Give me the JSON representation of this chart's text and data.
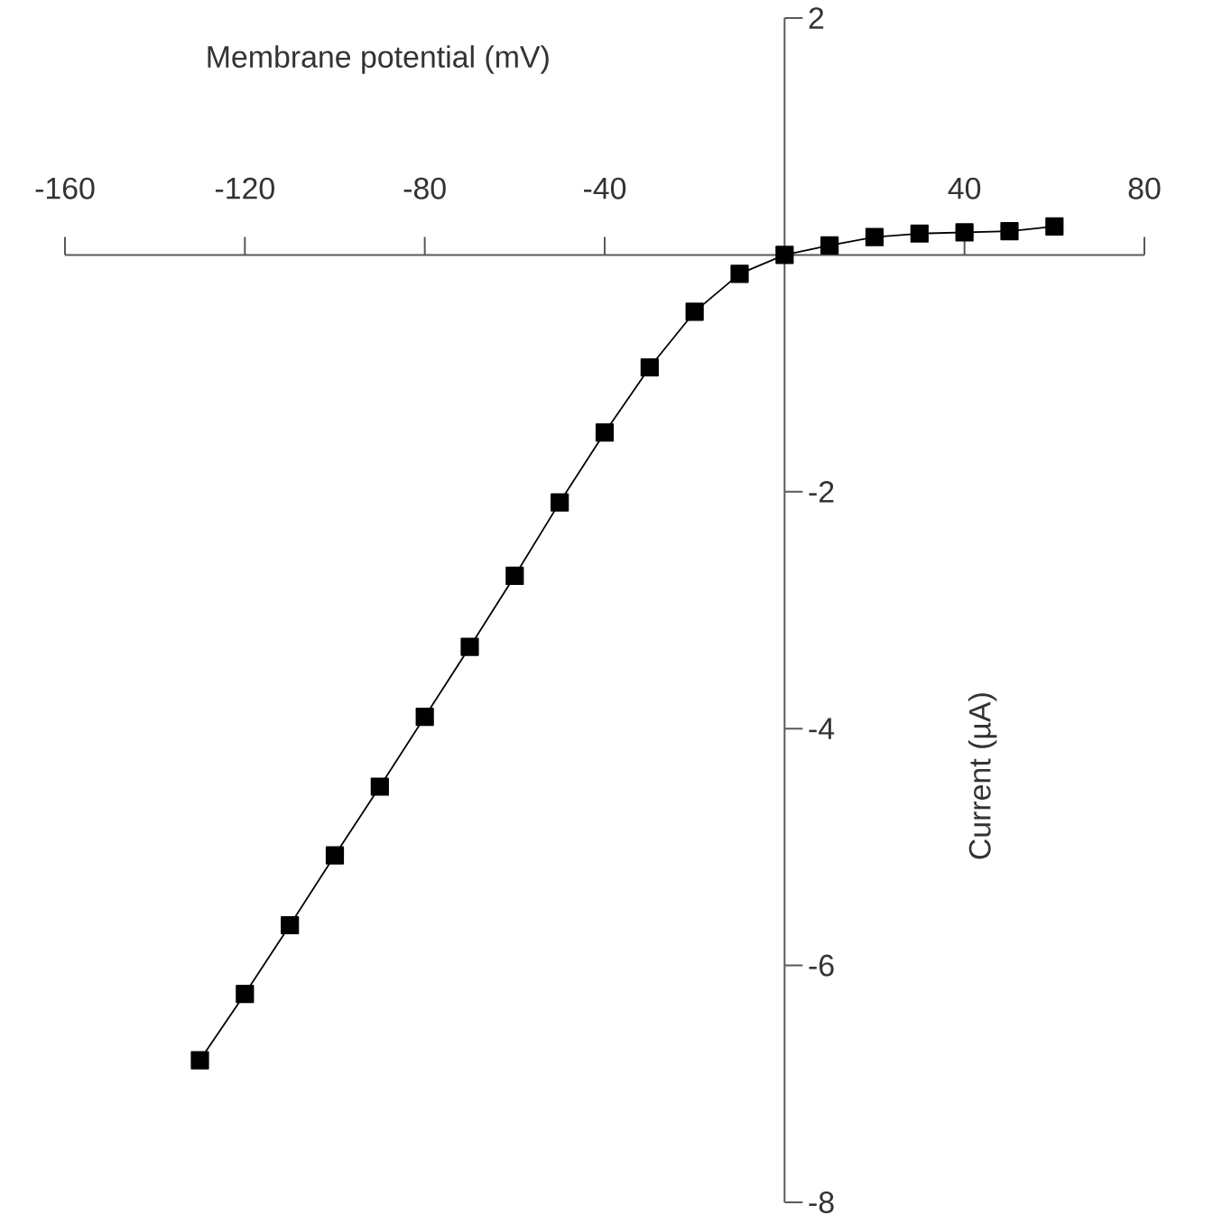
{
  "chart_data": {
    "type": "line",
    "xlabel": "Membrane potential (mV)",
    "ylabel": "Current (µA)",
    "x": [
      -130,
      -120,
      -110,
      -100,
      -90,
      -80,
      -70,
      -60,
      -50,
      -40,
      -30,
      -20,
      -10,
      0,
      10,
      20,
      30,
      40,
      50,
      60
    ],
    "series": [
      {
        "color": "#000000",
        "values": [
          -6.8,
          -6.24,
          -5.66,
          -5.07,
          -4.49,
          -3.9,
          -3.31,
          -2.71,
          -2.09,
          -1.5,
          -0.95,
          -0.48,
          -0.16,
          0,
          0.08,
          0.15,
          0.18,
          0.19,
          0.2,
          0.24
        ]
      }
    ],
    "marker": "square",
    "xlim": [
      -160,
      80
    ],
    "ylim": [
      -8,
      2
    ],
    "xticks": [
      -160,
      -120,
      -80,
      -40,
      40,
      80
    ],
    "yticks": [
      2,
      -2,
      -4,
      -6,
      -8
    ]
  }
}
